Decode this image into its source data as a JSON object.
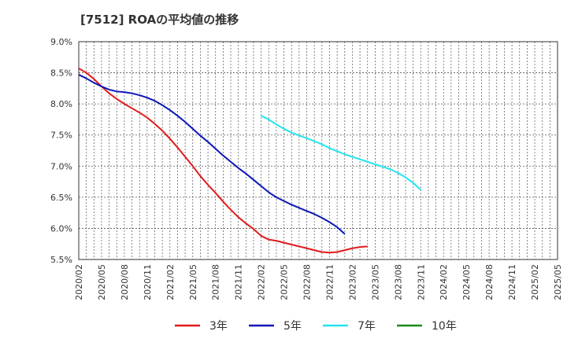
{
  "chart_data": {
    "type": "line",
    "title": "[7512]  ROAの平均値の推移",
    "xlabel": "",
    "ylabel": "",
    "x_labels": [
      "2020/02",
      "2020/05",
      "2020/08",
      "2020/11",
      "2021/02",
      "2021/05",
      "2021/08",
      "2021/11",
      "2022/02",
      "2022/05",
      "2022/08",
      "2022/11",
      "2023/02",
      "2023/05",
      "2023/08",
      "2023/11",
      "2024/02",
      "2024/05",
      "2024/08",
      "2024/11",
      "2025/02",
      "2025/05"
    ],
    "y_ticks": [
      "9.0%",
      "8.5%",
      "8.0%",
      "7.5%",
      "7.0%",
      "6.5%",
      "6.0%",
      "5.5%"
    ],
    "ylim": [
      5.5,
      9.0
    ],
    "grid": true,
    "legend_position": "bottom",
    "series": [
      {
        "name": "3年",
        "color": "#e31a1c",
        "start_index": 0,
        "values": [
          8.57,
          8.5,
          8.4,
          8.28,
          8.17,
          8.08,
          8.0,
          7.93,
          7.86,
          7.78,
          7.68,
          7.57,
          7.44,
          7.3,
          7.15,
          7.0,
          6.84,
          6.7,
          6.57,
          6.43,
          6.3,
          6.18,
          6.08,
          5.99,
          5.88,
          5.82,
          5.8,
          5.77,
          5.74,
          5.71,
          5.68,
          5.65,
          5.62,
          5.61,
          5.62,
          5.65,
          5.68,
          5.7,
          5.71
        ]
      },
      {
        "name": "5年",
        "color": "#0b17b8",
        "start_index": 0,
        "values": [
          8.47,
          8.41,
          8.34,
          8.28,
          8.23,
          8.2,
          8.19,
          8.17,
          8.14,
          8.1,
          8.05,
          7.98,
          7.9,
          7.81,
          7.71,
          7.6,
          7.49,
          7.39,
          7.28,
          7.17,
          7.07,
          6.97,
          6.88,
          6.78,
          6.68,
          6.58,
          6.5,
          6.44,
          6.38,
          6.33,
          6.28,
          6.23,
          6.17,
          6.1,
          6.02,
          5.91
        ]
      },
      {
        "name": "7年",
        "color": "#22e5f0",
        "start_index": 24,
        "values": [
          7.81,
          7.75,
          7.67,
          7.6,
          7.54,
          7.49,
          7.45,
          7.4,
          7.35,
          7.29,
          7.24,
          7.19,
          7.15,
          7.11,
          7.07,
          7.03,
          6.99,
          6.95,
          6.89,
          6.82,
          6.73,
          6.62
        ]
      },
      {
        "name": "10年",
        "color": "#1a8a1a",
        "start_index": 0,
        "values": []
      }
    ]
  }
}
